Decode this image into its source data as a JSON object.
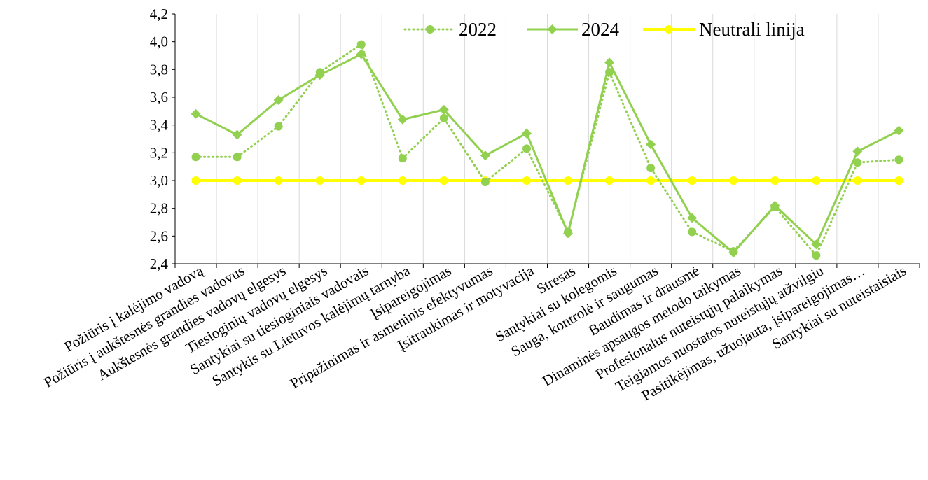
{
  "chart_data": {
    "type": "line",
    "title": "",
    "xlabel": "",
    "ylabel": "",
    "ylim": [
      2.4,
      4.2
    ],
    "yticks": [
      "2,4",
      "2,6",
      "2,8",
      "3,0",
      "3,2",
      "3,4",
      "3,6",
      "3,8",
      "4,0",
      "4,2"
    ],
    "ytick_values": [
      2.4,
      2.6,
      2.8,
      3.0,
      3.2,
      3.4,
      3.6,
      3.8,
      4.0,
      4.2
    ],
    "grid": "vertical",
    "legend_position": "top",
    "categories": [
      "Požiūris į kalėjimo vadovą",
      "Požiūris į aukštesnės grandies vadovus",
      "Aukštesnės grandies vadovų elgesys",
      "Tiesioginių vadovų elgesys",
      "Santykiai su tiesioginiais vadovais",
      "Santykis su Lietuvos kalėjimų tarnyba",
      "Įsipareigojimas",
      "Pripažinimas ir asmeninis efektyvumas",
      "Įsitraukimas ir motyvacija",
      "Stresas",
      "Santykiai su kolegomis",
      "Sauga, kontrolė ir saugumas",
      "Baudimas ir drausmė",
      "Dinaminės apsaugos metodo taikymas",
      "Profesionalus nuteistųjų palaikymas",
      "Teigiamos nuostatos nuteistųjų atžvilgiu",
      "Pasitikėjimas, užuojauta, įsipareigojimas…",
      "Santykiai su nuteistaisiais"
    ],
    "series": [
      {
        "name": "2022",
        "color": "#92D050",
        "line_style": "dotted",
        "marker": "circle",
        "values": [
          3.17,
          3.17,
          3.39,
          3.78,
          3.98,
          3.16,
          3.45,
          2.99,
          3.23,
          2.63,
          3.78,
          3.09,
          2.63,
          2.49,
          2.81,
          2.46,
          3.13,
          3.15
        ]
      },
      {
        "name": "2024",
        "color": "#92D050",
        "line_style": "solid",
        "marker": "diamond",
        "values": [
          3.48,
          3.33,
          3.58,
          3.76,
          3.91,
          3.44,
          3.51,
          3.18,
          3.34,
          2.62,
          3.85,
          3.26,
          2.73,
          2.48,
          2.82,
          2.54,
          3.21,
          3.36
        ]
      },
      {
        "name": "Neutrali linija",
        "color": "#FFFF00",
        "line_style": "solid",
        "marker": "circle",
        "values": [
          3.0,
          3.0,
          3.0,
          3.0,
          3.0,
          3.0,
          3.0,
          3.0,
          3.0,
          3.0,
          3.0,
          3.0,
          3.0,
          3.0,
          3.0,
          3.0,
          3.0,
          3.0
        ]
      }
    ]
  }
}
